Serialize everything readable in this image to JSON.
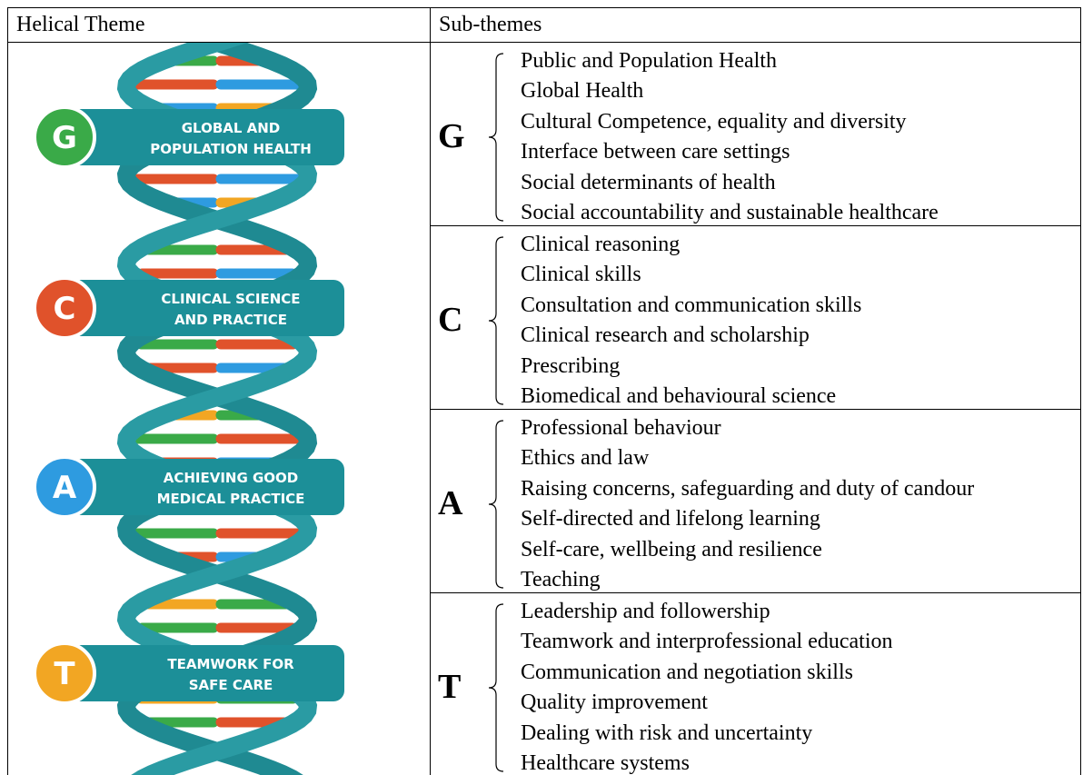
{
  "table": {
    "header": [
      "Helical Theme",
      "Sub-themes"
    ],
    "themes": [
      {
        "letter": "G",
        "color": "#3aaa48",
        "banner": [
          "GLOBAL AND",
          "POPULATION HEALTH"
        ],
        "items": [
          "Public and Population Health",
          "Global Health",
          "Cultural Competence, equality and diversity",
          "Interface between care settings",
          "Social determinants of health",
          "Social accountability and sustainable healthcare"
        ]
      },
      {
        "letter": "C",
        "color": "#e0522b",
        "banner": [
          "CLINICAL SCIENCE",
          "AND PRACTICE"
        ],
        "items": [
          "Clinical reasoning",
          "Clinical skills",
          "Consultation and communication skills",
          "Clinical research and scholarship",
          "Prescribing",
          "Biomedical and behavioural science"
        ]
      },
      {
        "letter": "A",
        "color": "#2e9be0",
        "banner": [
          "ACHIEVING GOOD",
          "MEDICAL PRACTICE"
        ],
        "items": [
          "Professional behaviour",
          "Ethics and law",
          "Raising concerns, safeguarding and duty of candour",
          "Self-directed and lifelong learning",
          "Self-care, wellbeing and resilience",
          "Teaching"
        ]
      },
      {
        "letter": "T",
        "color": "#f2a623",
        "banner": [
          "TEAMWORK FOR",
          "SAFE CARE"
        ],
        "items": [
          "Leadership and followership",
          "Teamwork and interprofessional education",
          "Communication and negotiation skills",
          "Quality improvement",
          "Dealing with risk and uncertainty",
          "Healthcare systems"
        ]
      }
    ]
  }
}
